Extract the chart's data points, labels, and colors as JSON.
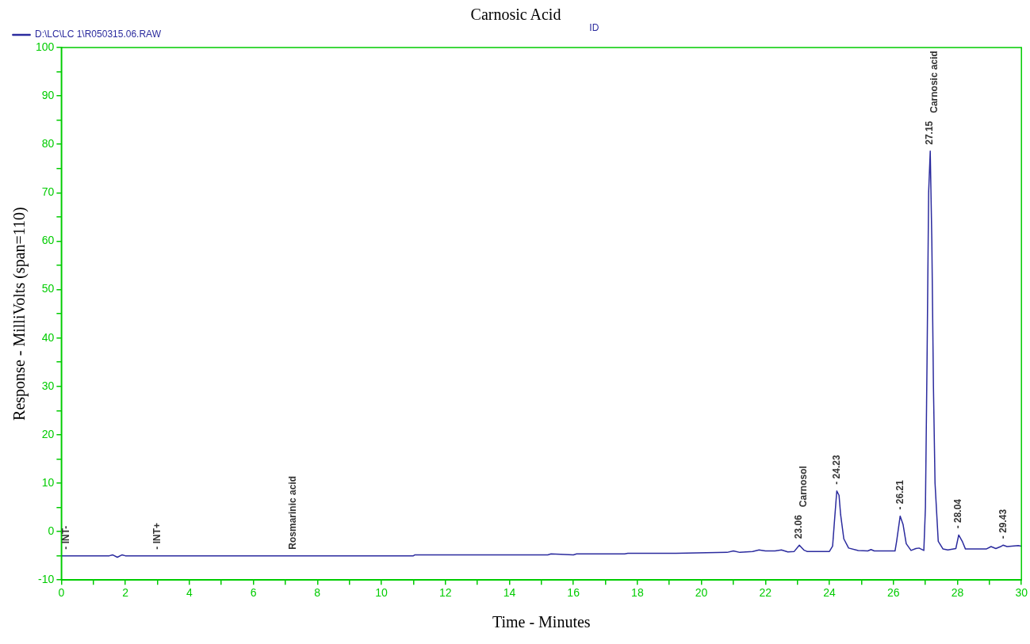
{
  "chart_data": {
    "type": "line",
    "title": "Carnosic Acid",
    "xlabel": "Time - Minutes",
    "ylabel": "Response - MilliVolts (span=110)",
    "legend": "top left",
    "grid": false,
    "marker": "none",
    "line_style": "solid",
    "xlim": [
      0,
      30
    ],
    "xticks": [
      0,
      {
        "value": 1,
        "label": null
      },
      2,
      {
        "value": 3,
        "label": null
      },
      4,
      {
        "value": 5,
        "label": null
      },
      6,
      {
        "value": 7,
        "label": null
      },
      8,
      {
        "value": 9,
        "label": null
      },
      10,
      {
        "value": 11,
        "label": null
      },
      12,
      {
        "value": 13,
        "label": null
      },
      14,
      {
        "value": 15,
        "label": null
      },
      16,
      {
        "value": 17,
        "label": null
      },
      18,
      {
        "value": 19,
        "label": null
      },
      20,
      {
        "value": 21,
        "label": null
      },
      22,
      {
        "value": 23,
        "label": null
      },
      24,
      {
        "value": 25,
        "label": null
      },
      26,
      {
        "value": 27,
        "label": null
      },
      28,
      {
        "value": 29,
        "label": null
      },
      30
    ],
    "ylim": [
      -10,
      100
    ],
    "yticks": [
      -10,
      {
        "value": -5,
        "label": null
      },
      0,
      {
        "value": 5,
        "label": null
      },
      10,
      {
        "value": 15,
        "label": null
      },
      20,
      {
        "value": 25,
        "label": null
      },
      30,
      {
        "value": 35,
        "label": null
      },
      40,
      {
        "value": 45,
        "label": null
      },
      50,
      {
        "value": 55,
        "label": null
      },
      60,
      {
        "value": 65,
        "label": null
      },
      70,
      {
        "value": 75,
        "label": null
      },
      80,
      {
        "value": 85,
        "label": null
      },
      90,
      {
        "value": 95,
        "label": null
      },
      100
    ],
    "series": [
      {
        "name": "D:\\LC\\LC 1\\R050315.06.RAW",
        "color": "#2b2b9e",
        "x": [
          0,
          1.5,
          1.6,
          1.75,
          1.9,
          2.0,
          7,
          11,
          11.05,
          15.2,
          15.3,
          15.6,
          16,
          16.1,
          17.6,
          17.7,
          19.2,
          20.8,
          21,
          21.2,
          21.6,
          21.8,
          22.0,
          22.3,
          22.5,
          22.7,
          22.9,
          23.06,
          23.2,
          23.3,
          24.0,
          24.1,
          24.15,
          24.23,
          24.3,
          24.35,
          24.45,
          24.6,
          24.9,
          25.2,
          25.3,
          25.4,
          26.05,
          26.1,
          26.21,
          26.3,
          26.4,
          26.55,
          26.7,
          26.8,
          26.95,
          27.0,
          27.05,
          27.1,
          27.15,
          27.2,
          27.25,
          27.3,
          27.4,
          27.55,
          27.7,
          27.95,
          28.04,
          28.15,
          28.25,
          28.4,
          28.9,
          29.05,
          29.2,
          29.35,
          29.43,
          29.55,
          29.9,
          30
        ],
        "values": [
          -5,
          -5,
          -4.8,
          -5.3,
          -4.8,
          -5,
          -5,
          -5,
          -4.8,
          -4.8,
          -4.6,
          -4.7,
          -4.8,
          -4.6,
          -4.6,
          -4.5,
          -4.5,
          -4.3,
          -4.0,
          -4.3,
          -4.1,
          -3.8,
          -4.0,
          -4.0,
          -3.8,
          -4.2,
          -4.1,
          -2.8,
          -3.8,
          -4.1,
          -4.1,
          -3.0,
          1.5,
          8.4,
          7.5,
          3.5,
          -1.5,
          -3.4,
          -3.9,
          -4.0,
          -3.7,
          -4.0,
          -4.0,
          -2.0,
          3.2,
          1.5,
          -2.5,
          -3.9,
          -3.5,
          -3.4,
          -3.9,
          5,
          35,
          70,
          78.6,
          60,
          30,
          10,
          -2,
          -3.6,
          -3.8,
          -3.5,
          -0.7,
          -2.0,
          -3.6,
          -3.6,
          -3.6,
          -3.1,
          -3.5,
          -3.1,
          -2.8,
          -3.1,
          -2.9,
          -3.0
        ]
      }
    ],
    "annotations": [
      "ID",
      {
        "text": "- INT-",
        "x": 0.15,
        "y": -5
      },
      {
        "text": "- INT+",
        "x": 3,
        "y": -5
      },
      {
        "text": "Rosmarinic acid",
        "x": 7.25,
        "y": -5
      },
      {
        "text": "23.06",
        "x": 23.06,
        "y": -2.8
      },
      "Carnosol",
      {
        "text": "- 24.23",
        "x": 24.23,
        "y": 8.4
      },
      {
        "text": "- 26.21",
        "x": 26.21,
        "y": 3.2
      },
      {
        "text": "27.15",
        "x": 27.15,
        "y": 78.6
      },
      "Carnosic acid",
      {
        "text": "- 28.04",
        "x": 28.04,
        "y": -0.7
      },
      {
        "text": "- 29.43",
        "x": 29.43,
        "y": -2.8
      }
    ]
  }
}
